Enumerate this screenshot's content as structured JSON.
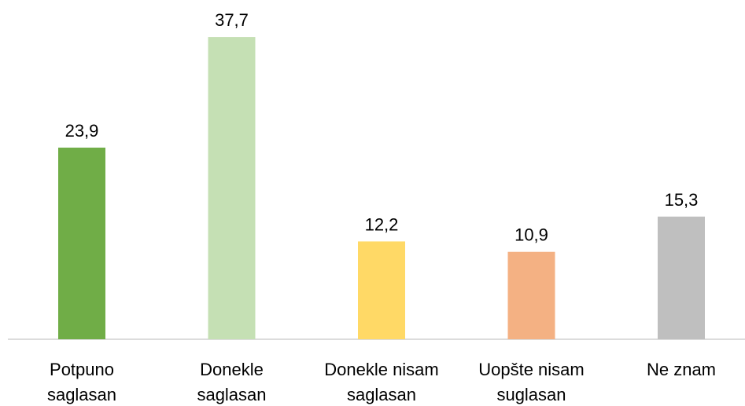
{
  "chart_data": {
    "type": "bar",
    "categories": [
      "Potpuno saglasan",
      "Donekle saglasan",
      "Donekle nisam saglasan",
      "Uopšte nisam suglasan",
      "Ne znam"
    ],
    "values": [
      23.9,
      37.7,
      12.2,
      10.9,
      15.3
    ],
    "value_labels": [
      "23,9",
      "37,7",
      "12,2",
      "10,9",
      "15,3"
    ],
    "colors": [
      "#70ad47",
      "#c5e0b4",
      "#ffd966",
      "#f4b183",
      "#bfbfbf"
    ]
  }
}
